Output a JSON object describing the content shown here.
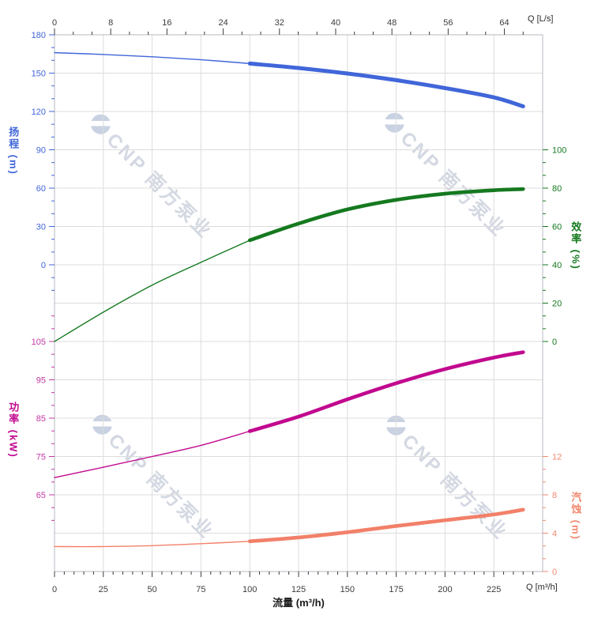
{
  "watermark": {
    "text": "CNP 南方泵业",
    "color": "#d3d8e2"
  },
  "chart_data": {
    "type": "line",
    "title": "",
    "xlabel": "流量 (m³/h)",
    "x_unit_top": "Q [L/s]",
    "x_unit_bottom": "Q [m³/h]",
    "x": [
      0,
      25,
      50,
      75,
      100,
      125,
      150,
      175,
      200,
      225,
      240
    ],
    "duty_range": [
      100,
      240
    ],
    "series": [
      {
        "name": "扬程",
        "unit": "m",
        "axis": "head",
        "color": "#4066D9",
        "values": [
          166,
          164.6,
          162.8,
          160.5,
          157.5,
          154,
          149.7,
          144.5,
          138.3,
          131,
          124
        ]
      },
      {
        "name": "效率",
        "unit": "%",
        "axis": "eff",
        "color": "#15791F",
        "values": [
          0,
          15.3,
          29.4,
          41.3,
          52.8,
          61.5,
          68.9,
          73.9,
          77.1,
          78.9,
          79.5
        ]
      },
      {
        "name": "功率",
        "unit": "kW",
        "axis": "power",
        "color": "#C1098F",
        "values": [
          69.5,
          72.2,
          75,
          77.9,
          81.6,
          85.4,
          89.9,
          94.1,
          97.8,
          100.8,
          102.2
        ]
      },
      {
        "name": "汽蚀",
        "unit": "m",
        "axis": "npsh",
        "color": "#F28069",
        "values": [
          2.6,
          2.6,
          2.7,
          2.9,
          3.15,
          3.55,
          4.1,
          4.75,
          5.35,
          5.95,
          6.45
        ]
      }
    ],
    "axes": {
      "top": {
        "unit_label": "Q [L/s]",
        "ticks": [
          0,
          8,
          16,
          24,
          32,
          40,
          48,
          56,
          64
        ],
        "max_Ls": 69.4,
        "color": "#3c3c3c"
      },
      "bottom": {
        "unit_label": "Q [m³/h]",
        "ticks": [
          0,
          25,
          50,
          75,
          100,
          125,
          150,
          175,
          200,
          225
        ],
        "max": 250,
        "color": "#3c3c3c"
      },
      "head": {
        "title": "扬程 (m)",
        "ticks": [
          180,
          150,
          120,
          90,
          60,
          30,
          0
        ],
        "range": [
          0,
          180
        ],
        "color": "#4066D9"
      },
      "eff": {
        "title": "效率 (%)",
        "ticks": [
          100,
          80,
          60,
          40,
          20,
          0
        ],
        "range": [
          0,
          100
        ],
        "color": "#15791F"
      },
      "power": {
        "title": "功率 (kW)",
        "ticks": [
          105,
          95,
          85,
          75,
          65
        ],
        "range": [
          65,
          105
        ],
        "color": "#C438A2"
      },
      "npsh": {
        "title": "汽蚀 (m)",
        "ticks": [
          12,
          8,
          4,
          0
        ],
        "range": [
          0,
          12
        ],
        "color": "#F28870"
      }
    },
    "grid": true,
    "legend": false
  }
}
